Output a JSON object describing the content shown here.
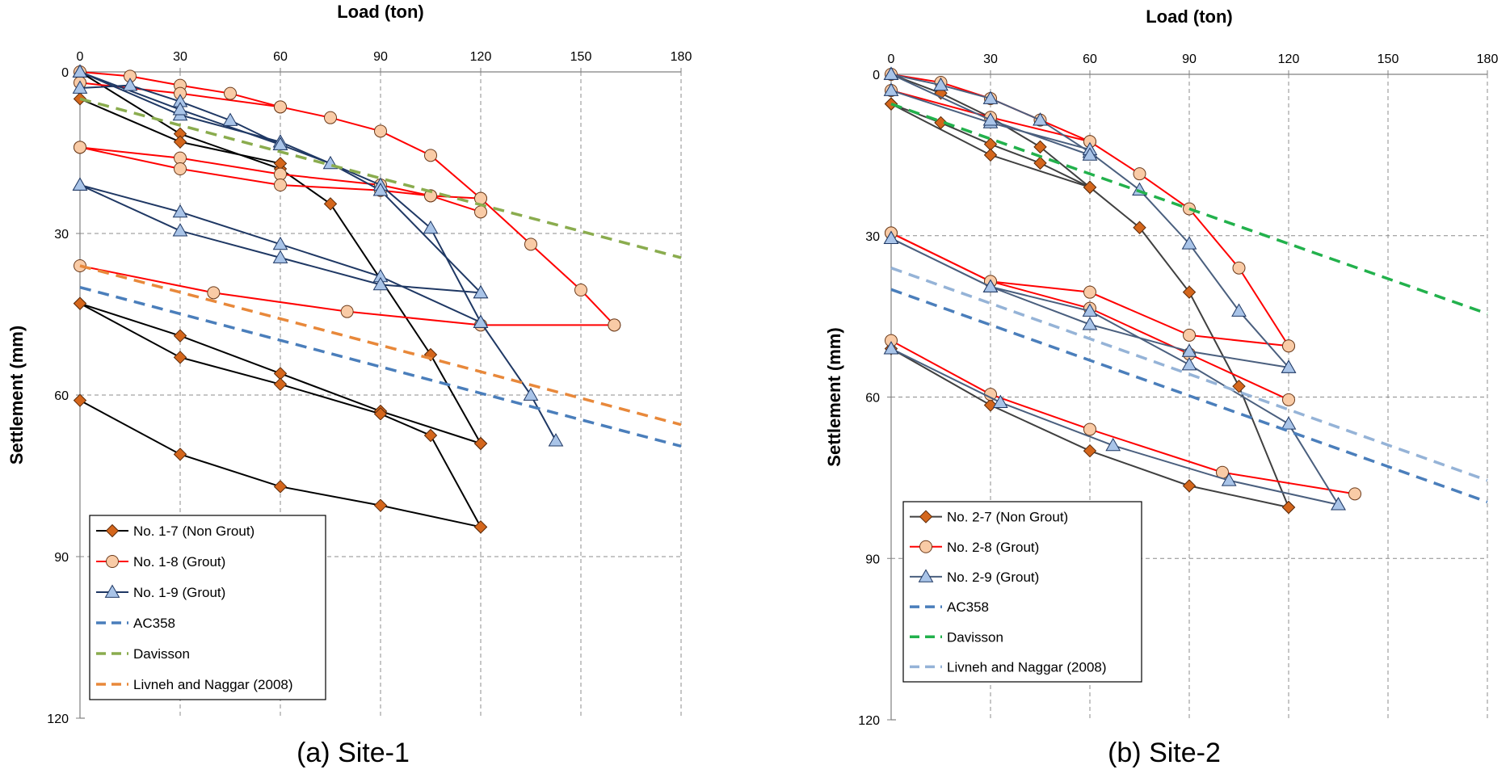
{
  "chart_data": [
    {
      "type": "line",
      "title": "",
      "caption": "(a) Site-1",
      "xlabel": "Load (ton)",
      "ylabel": "Settlement (mm)",
      "xlim": [
        0,
        180
      ],
      "ylim": [
        0,
        120
      ],
      "xticks": [
        "0",
        "30",
        "60",
        "90",
        "120",
        "150",
        "180"
      ],
      "yticks": [
        "0",
        "30",
        "60",
        "90",
        "120"
      ],
      "x_axis_position": "top",
      "y_inverted": true,
      "grid": true,
      "legend_position": "bottom-left",
      "series": [
        {
          "name": "No. 1-7 (Non Grout)",
          "color": "#000000",
          "marker": "diamond",
          "marker_color": "#d4661c",
          "segments": [
            [
              [
                0,
                0
              ],
              [
                30,
                11.5
              ],
              [
                60,
                18
              ],
              [
                75,
                24.5
              ],
              [
                105,
                52.5
              ],
              [
                120,
                69
              ]
            ],
            [
              [
                0,
                5
              ],
              [
                30,
                13
              ],
              [
                60,
                17
              ]
            ],
            [
              [
                0,
                43
              ],
              [
                30,
                49
              ],
              [
                60,
                56
              ],
              [
                90,
                63
              ],
              [
                120,
                69
              ]
            ],
            [
              [
                0,
                43
              ],
              [
                30,
                53
              ],
              [
                60,
                58
              ],
              [
                90,
                63.5
              ],
              [
                105,
                67.5
              ],
              [
                120,
                84.5
              ]
            ],
            [
              [
                0,
                61
              ],
              [
                30,
                71
              ],
              [
                60,
                77
              ],
              [
                90,
                80.5
              ],
              [
                120,
                84.5
              ]
            ]
          ]
        },
        {
          "name": "No. 1-8 (Grout)",
          "color": "#ff0000",
          "marker": "circle",
          "marker_color": "#f9cba6",
          "segments": [
            [
              [
                0,
                0
              ],
              [
                15,
                0.8
              ],
              [
                30,
                2.5
              ],
              [
                45,
                4
              ],
              [
                60,
                6.5
              ],
              [
                75,
                8.5
              ],
              [
                90,
                11
              ],
              [
                105,
                15.5
              ],
              [
                120,
                23.5
              ],
              [
                135,
                32
              ],
              [
                150,
                40.5
              ],
              [
                160,
                47
              ]
            ],
            [
              [
                0,
                2
              ],
              [
                30,
                4
              ],
              [
                60,
                6.5
              ]
            ],
            [
              [
                0,
                14
              ],
              [
                30,
                16
              ],
              [
                60,
                19
              ],
              [
                90,
                21
              ],
              [
                105,
                23
              ],
              [
                120,
                23.5
              ]
            ],
            [
              [
                0,
                14
              ],
              [
                30,
                18
              ],
              [
                60,
                21
              ],
              [
                90,
                22
              ],
              [
                105,
                23
              ],
              [
                120,
                26
              ]
            ],
            [
              [
                0,
                36
              ],
              [
                40,
                41
              ],
              [
                80,
                44.5
              ],
              [
                120,
                47
              ],
              [
                160,
                47
              ]
            ]
          ]
        },
        {
          "name": "No. 1-9 (Grout)",
          "color": "#1f3864",
          "marker": "triangle",
          "marker_color": "#a9c4e8",
          "segments": [
            [
              [
                0,
                0
              ],
              [
                30,
                8
              ],
              [
                60,
                13
              ],
              [
                90,
                21
              ],
              [
                105,
                29
              ],
              [
                120,
                46.5
              ],
              [
                135,
                60
              ],
              [
                142.5,
                68.5
              ]
            ],
            [
              [
                0,
                3
              ],
              [
                15,
                2.5
              ],
              [
                30,
                5.5
              ],
              [
                45,
                9
              ],
              [
                60,
                13.5
              ],
              [
                75,
                17
              ],
              [
                90,
                22
              ],
              [
                120,
                41
              ]
            ],
            [
              [
                0,
                0
              ],
              [
                30,
                7
              ],
              [
                60,
                13.5
              ]
            ],
            [
              [
                0,
                21
              ],
              [
                30,
                26
              ],
              [
                60,
                32
              ],
              [
                90,
                38
              ],
              [
                120,
                46.5
              ]
            ],
            [
              [
                0,
                21
              ],
              [
                30,
                29.5
              ],
              [
                60,
                34.5
              ],
              [
                90,
                39.5
              ],
              [
                120,
                41
              ]
            ]
          ]
        },
        {
          "name": "AC358",
          "color": "#4a7ebb",
          "dashed": true,
          "segments": [
            [
              [
                0,
                40
              ],
              [
                180,
                69.5
              ]
            ]
          ]
        },
        {
          "name": "Davisson",
          "color": "#8aac4e",
          "dashed": true,
          "segments": [
            [
              [
                0,
                5
              ],
              [
                180,
                34.5
              ]
            ]
          ]
        },
        {
          "name": "Livneh and Naggar (2008)",
          "color": "#e8883a",
          "dashed": true,
          "segments": [
            [
              [
                0,
                36
              ],
              [
                180,
                65.5
              ]
            ]
          ]
        }
      ]
    },
    {
      "type": "line",
      "title": "",
      "caption": "(b) Site-2",
      "xlabel": "Load (ton)",
      "ylabel": "Settlement (mm)",
      "xlim": [
        0,
        180
      ],
      "ylim": [
        0,
        120
      ],
      "xticks": [
        "0",
        "30",
        "60",
        "90",
        "120",
        "150",
        "180"
      ],
      "yticks": [
        "0",
        "30",
        "60",
        "90",
        "120"
      ],
      "x_axis_position": "top",
      "y_inverted": true,
      "grid": true,
      "legend_position": "bottom-left",
      "series": [
        {
          "name": "No. 2-7 (Non Grout)",
          "color": "#404040",
          "marker": "diamond",
          "marker_color": "#d4661c",
          "segments": [
            [
              [
                0,
                0
              ],
              [
                15,
                3.5
              ],
              [
                30,
                8
              ],
              [
                45,
                13.5
              ],
              [
                60,
                21
              ],
              [
                75,
                28.5
              ],
              [
                90,
                40.5
              ],
              [
                105,
                58
              ],
              [
                120,
                80.5
              ]
            ],
            [
              [
                0,
                5.5
              ],
              [
                15,
                9
              ],
              [
                30,
                13
              ],
              [
                45,
                16.5
              ],
              [
                60,
                21
              ]
            ],
            [
              [
                0,
                5.5
              ],
              [
                30,
                15
              ],
              [
                60,
                21
              ]
            ],
            [
              [
                0,
                51
              ],
              [
                30,
                61.5
              ],
              [
                60,
                70
              ],
              [
                90,
                76.5
              ],
              [
                120,
                80.5
              ]
            ]
          ]
        },
        {
          "name": "No. 2-8 (Grout)",
          "color": "#ff0000",
          "marker": "circle",
          "marker_color": "#f9cba6",
          "segments": [
            [
              [
                0,
                0
              ],
              [
                15,
                1.5
              ],
              [
                30,
                4.5
              ],
              [
                45,
                8.5
              ],
              [
                60,
                12.5
              ],
              [
                75,
                18.5
              ],
              [
                90,
                25
              ],
              [
                105,
                36
              ],
              [
                120,
                50.5
              ]
            ],
            [
              [
                0,
                3
              ],
              [
                30,
                8
              ],
              [
                60,
                12.5
              ]
            ],
            [
              [
                0,
                29.5
              ],
              [
                30,
                38.5
              ],
              [
                60,
                40.5
              ],
              [
                90,
                48.5
              ],
              [
                120,
                50.5
              ]
            ],
            [
              [
                0,
                29.5
              ],
              [
                30,
                38.5
              ],
              [
                60,
                43.5
              ],
              [
                90,
                52
              ],
              [
                120,
                60.5
              ]
            ],
            [
              [
                0,
                49.5
              ],
              [
                30,
                59.5
              ],
              [
                60,
                66
              ],
              [
                100,
                74
              ],
              [
                140,
                78
              ]
            ]
          ]
        },
        {
          "name": "No. 2-9 (Grout)",
          "color": "#4a5f7e",
          "marker": "triangle",
          "marker_color": "#a9c4e8",
          "segments": [
            [
              [
                0,
                0
              ],
              [
                15,
                2
              ],
              [
                30,
                4.5
              ],
              [
                45,
                8.5
              ],
              [
                60,
                14.5
              ],
              [
                75,
                21.5
              ],
              [
                90,
                31.5
              ],
              [
                105,
                44
              ],
              [
                120,
                54.5
              ]
            ],
            [
              [
                0,
                3
              ],
              [
                30,
                9
              ],
              [
                60,
                14
              ]
            ],
            [
              [
                0,
                0
              ],
              [
                30,
                8.5
              ],
              [
                60,
                15
              ]
            ],
            [
              [
                0,
                30.5
              ],
              [
                30,
                39.5
              ],
              [
                60,
                46.5
              ],
              [
                90,
                51.5
              ],
              [
                120,
                54.5
              ]
            ],
            [
              [
                0,
                30.5
              ],
              [
                30,
                39.5
              ],
              [
                60,
                44
              ],
              [
                90,
                54
              ],
              [
                120,
                65
              ],
              [
                135,
                80
              ]
            ],
            [
              [
                0,
                51
              ],
              [
                33,
                61
              ],
              [
                67,
                69
              ],
              [
                102,
                75.5
              ],
              [
                135,
                80
              ]
            ]
          ]
        },
        {
          "name": "AC358",
          "color": "#4a7ebb",
          "dashed": true,
          "segments": [
            [
              [
                0,
                40
              ],
              [
                180,
                79.5
              ]
            ]
          ]
        },
        {
          "name": "Davisson",
          "color": "#22b14c",
          "dashed": true,
          "segments": [
            [
              [
                0,
                5.5
              ],
              [
                180,
                44.5
              ]
            ]
          ]
        },
        {
          "name": "Livneh and Naggar (2008)",
          "color": "#95b3d7",
          "dashed": true,
          "segments": [
            [
              [
                0,
                36
              ],
              [
                180,
                75.5
              ]
            ]
          ]
        }
      ]
    }
  ]
}
